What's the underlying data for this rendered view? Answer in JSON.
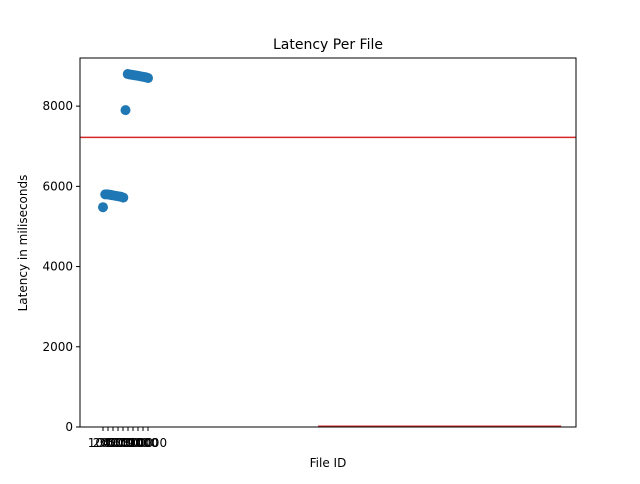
{
  "chart_data": {
    "type": "scatter",
    "title": "Latency Per File",
    "xlabel": "File ID",
    "ylabel": "Latency in miliseconds",
    "ylim": [
      0,
      9200
    ],
    "y_ticks": [
      0,
      2000,
      4000,
      6000,
      8000
    ],
    "x_tick_labels_overlapping": [
      "1000",
      "2000",
      "3000",
      "4000",
      "5000",
      "6000",
      "7000",
      "8000",
      "9000",
      "10000"
    ],
    "grid": false,
    "legend": "none",
    "series": [
      {
        "color": "#1f77b4",
        "marker": "circle",
        "points": [
          {
            "x": 1,
            "y": 5480
          },
          {
            "x": 2,
            "y": 5800
          },
          {
            "x": 3,
            "y": 5800
          },
          {
            "x": 4,
            "y": 5790
          },
          {
            "x": 5,
            "y": 5780
          },
          {
            "x": 6,
            "y": 5770
          },
          {
            "x": 7,
            "y": 5760
          },
          {
            "x": 8,
            "y": 5750
          },
          {
            "x": 9,
            "y": 5740
          },
          {
            "x": 10,
            "y": 5720
          },
          {
            "x": 11,
            "y": 7900
          },
          {
            "x": 12,
            "y": 8800
          },
          {
            "x": 13,
            "y": 8790
          },
          {
            "x": 14,
            "y": 8780
          },
          {
            "x": 15,
            "y": 8770
          },
          {
            "x": 16,
            "y": 8760
          },
          {
            "x": 17,
            "y": 8750
          },
          {
            "x": 18,
            "y": 8740
          },
          {
            "x": 19,
            "y": 8730
          },
          {
            "x": 20,
            "y": 8720
          },
          {
            "x": 21,
            "y": 8700
          }
        ]
      }
    ],
    "reference_lines": [
      {
        "type": "horizontal",
        "y": 7220,
        "color": "#d62728"
      },
      {
        "type": "horizontal_segment",
        "y": 20,
        "x_start_fraction": 0.48,
        "x_end_fraction": 0.97,
        "color": "#d62728"
      }
    ]
  }
}
